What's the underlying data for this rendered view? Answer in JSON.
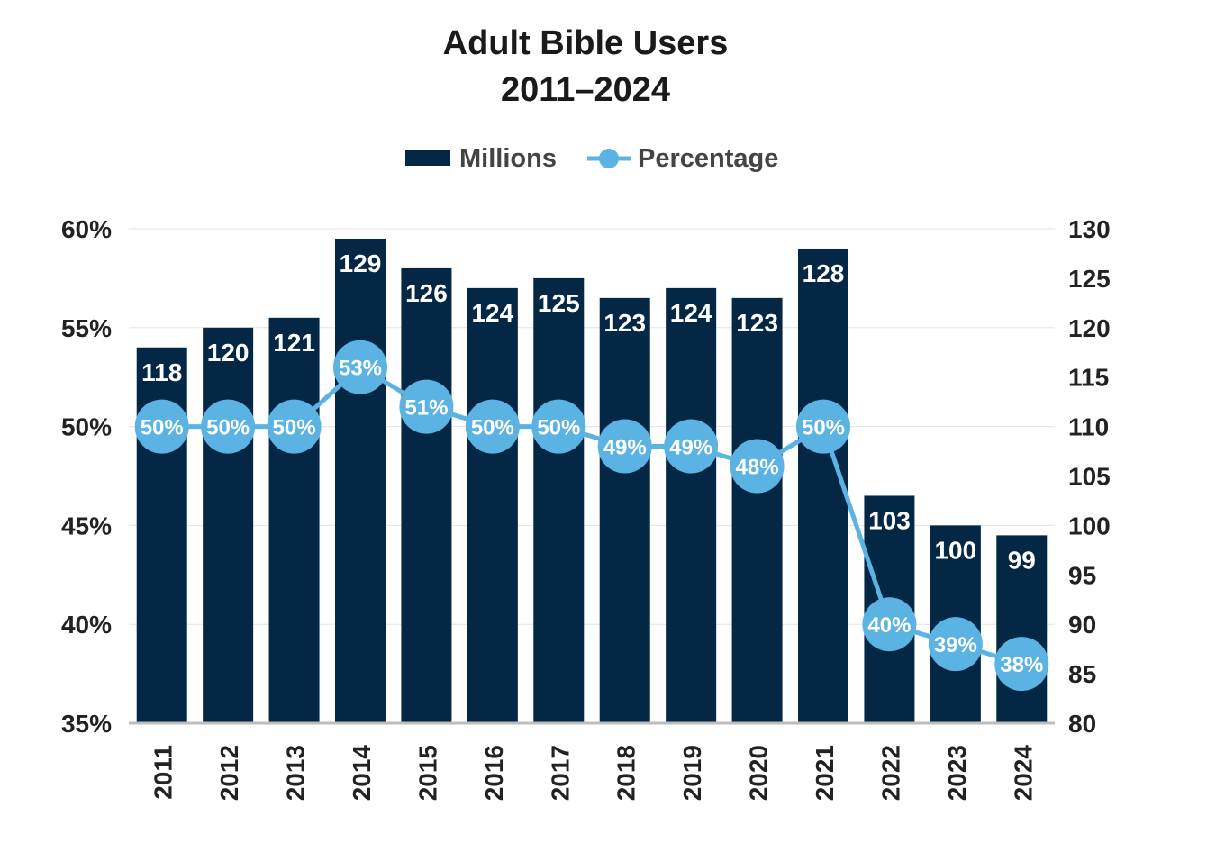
{
  "chart_data": {
    "type": "bar",
    "title": "Adult Bible Users",
    "subtitle": "2011–2024",
    "categories": [
      "2011",
      "2012",
      "2013",
      "2014",
      "2015",
      "2016",
      "2017",
      "2018",
      "2019",
      "2020",
      "2021",
      "2022",
      "2023",
      "2024"
    ],
    "series": [
      {
        "name": "Millions",
        "type": "bar",
        "axis": "right",
        "color": "#032745",
        "values": [
          118,
          120,
          121,
          129,
          126,
          124,
          125,
          123,
          124,
          123,
          128,
          103,
          100,
          99
        ],
        "labels": [
          "118",
          "120",
          "121",
          "129",
          "126",
          "124",
          "125",
          "123",
          "124",
          "123",
          "128",
          "103",
          "100",
          "99"
        ]
      },
      {
        "name": "Percentage",
        "type": "line",
        "axis": "left",
        "color": "#5bb3e4",
        "values": [
          50,
          50,
          50,
          53,
          51,
          50,
          50,
          49,
          49,
          48,
          50,
          40,
          39,
          38
        ],
        "labels": [
          "50%",
          "50%",
          "50%",
          "53%",
          "51%",
          "50%",
          "50%",
          "49%",
          "49%",
          "48%",
          "50%",
          "40%",
          "39%",
          "38%"
        ]
      }
    ],
    "left_axis": {
      "ylim": [
        35,
        60
      ],
      "ticks": [
        "35%",
        "40%",
        "45%",
        "50%",
        "55%",
        "60%"
      ]
    },
    "right_axis": {
      "ylim": [
        80,
        130
      ],
      "ticks": [
        "80",
        "85",
        "90",
        "95",
        "100",
        "105",
        "110",
        "115",
        "120",
        "125",
        "130"
      ]
    },
    "xlabel": "",
    "ylabel": "",
    "legend": {
      "placement": "top-center",
      "entries": [
        "Millions",
        "Percentage"
      ]
    },
    "grid": true
  }
}
